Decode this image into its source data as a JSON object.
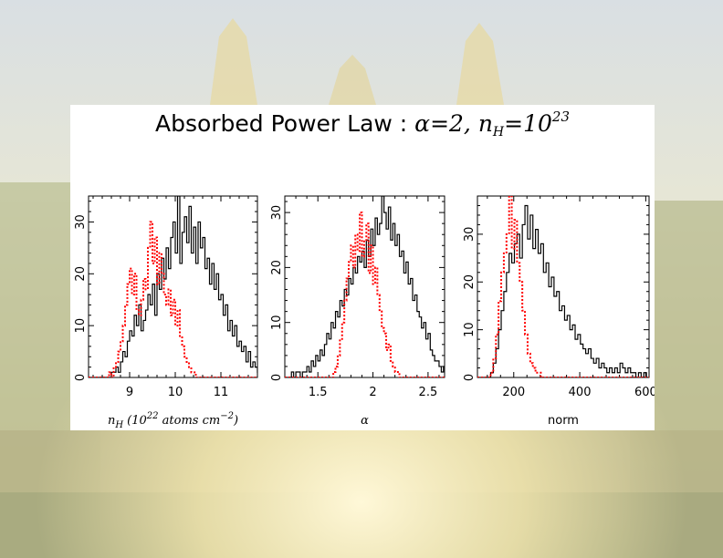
{
  "title": {
    "prefix": "Absorbed Power Law : ",
    "alpha_sym": "α",
    "alpha_eq": "=2, ",
    "nh_sym": "n",
    "nh_sub": "H",
    "nh_eq": "=10",
    "nh_exp": "23"
  },
  "colors": {
    "black_series": "#000000",
    "red_series": "#ff0000",
    "background_scene": "#e9e4cf"
  },
  "chart_data": [
    {
      "type": "histogram",
      "xlabel": "n_H (10^22 atoms cm^-2)",
      "xlabel_parts": {
        "sym": "n",
        "sub": "H",
        "open": " (10",
        "sup1": "22",
        "mid": " atoms cm",
        "sup2": "−2",
        "close": ")"
      },
      "xlim": [
        8.1,
        11.8
      ],
      "ylim": [
        0,
        35
      ],
      "xticks": [
        9,
        10,
        11
      ],
      "yticks": [
        0,
        10,
        20,
        30
      ],
      "series": [
        {
          "style": "solid-black",
          "bin_start": 8.1,
          "bin_width": 0.05,
          "values": [
            0,
            0,
            0,
            0,
            0,
            0,
            0,
            0,
            0,
            0,
            1,
            1,
            2,
            1,
            3,
            5,
            4,
            7,
            9,
            8,
            12,
            10,
            14,
            9,
            11,
            13,
            16,
            14,
            18,
            12,
            20,
            17,
            23,
            19,
            25,
            21,
            27,
            30,
            24,
            35,
            22,
            28,
            31,
            26,
            33,
            24,
            29,
            22,
            30,
            25,
            27,
            21,
            23,
            18,
            22,
            17,
            20,
            15,
            16,
            12,
            14,
            9,
            11,
            8,
            10,
            6,
            7,
            5,
            6,
            3,
            5,
            2,
            3,
            2,
            1,
            1,
            2,
            1
          ]
        },
        {
          "style": "dotted-red",
          "bin_start": 8.1,
          "bin_width": 0.05,
          "values": [
            0,
            0,
            0,
            0,
            0,
            0,
            0,
            0,
            0,
            1,
            0,
            2,
            3,
            5,
            7,
            10,
            14,
            18,
            21,
            16,
            20,
            13,
            12,
            15,
            19,
            17,
            25,
            30,
            22,
            27,
            18,
            24,
            20,
            16,
            14,
            17,
            12,
            15,
            10,
            13,
            8,
            6,
            4,
            3,
            2,
            1,
            1,
            0,
            0,
            0,
            0,
            0,
            0,
            0,
            0,
            0,
            0,
            0,
            0,
            0,
            0,
            0,
            0,
            0,
            0,
            0,
            0,
            0,
            0,
            0,
            0,
            0,
            0,
            0
          ]
        }
      ]
    },
    {
      "type": "histogram",
      "xlabel": "α",
      "xlim": [
        1.2,
        2.65
      ],
      "ylim": [
        0,
        33
      ],
      "xticks": [
        1.5,
        2,
        2.5
      ],
      "xtick_labels": [
        "1.5",
        "2",
        "2.5"
      ],
      "yticks": [
        0,
        10,
        20,
        30
      ],
      "series": [
        {
          "style": "solid-black",
          "bin_start": 1.2,
          "bin_width": 0.02,
          "values": [
            0,
            0,
            0,
            1,
            0,
            1,
            1,
            0,
            1,
            1,
            2,
            1,
            3,
            2,
            4,
            3,
            5,
            4,
            6,
            8,
            7,
            10,
            9,
            12,
            11,
            14,
            13,
            16,
            15,
            18,
            17,
            20,
            19,
            22,
            21,
            23,
            20,
            25,
            22,
            27,
            24,
            29,
            26,
            28,
            33,
            30,
            27,
            31,
            25,
            28,
            24,
            26,
            22,
            23,
            19,
            21,
            17,
            18,
            14,
            15,
            12,
            11,
            9,
            10,
            7,
            8,
            5,
            4,
            3,
            3,
            2,
            1,
            2
          ]
        },
        {
          "style": "dotted-red",
          "bin_start": 1.2,
          "bin_width": 0.02,
          "values": [
            0,
            0,
            0,
            0,
            0,
            0,
            0,
            0,
            0,
            0,
            0,
            0,
            0,
            0,
            0,
            0,
            0,
            0,
            0,
            0,
            0,
            0,
            1,
            2,
            4,
            7,
            10,
            14,
            18,
            21,
            24,
            20,
            26,
            23,
            30,
            22,
            25,
            28,
            19,
            24,
            17,
            20,
            15,
            12,
            9,
            8,
            5,
            6,
            3,
            2,
            1,
            1,
            0,
            0,
            0,
            0,
            0,
            0,
            0,
            0,
            0,
            0,
            0,
            0,
            0,
            0,
            0,
            0,
            0,
            0,
            0,
            0,
            0
          ]
        }
      ]
    },
    {
      "type": "histogram",
      "xlabel": "norm",
      "xlim": [
        90,
        610
      ],
      "ylim": [
        0,
        38
      ],
      "xticks": [
        200,
        400,
        600
      ],
      "yticks": [
        0,
        10,
        20,
        30
      ],
      "series": [
        {
          "style": "solid-black",
          "bin_start": 90,
          "bin_width": 8,
          "values": [
            0,
            0,
            0,
            0,
            0,
            1,
            3,
            6,
            10,
            14,
            18,
            22,
            26,
            24,
            28,
            30,
            25,
            32,
            36,
            29,
            34,
            27,
            31,
            26,
            28,
            22,
            24,
            19,
            21,
            17,
            18,
            14,
            15,
            12,
            13,
            10,
            11,
            8,
            9,
            7,
            6,
            5,
            6,
            4,
            3,
            4,
            2,
            3,
            2,
            1,
            2,
            1,
            2,
            1,
            3,
            2,
            1,
            2,
            1,
            1,
            0,
            1,
            0,
            1,
            0
          ]
        },
        {
          "style": "dotted-red",
          "bin_start": 90,
          "bin_width": 8,
          "values": [
            0,
            0,
            0,
            0,
            0,
            1,
            4,
            9,
            16,
            22,
            26,
            30,
            38,
            27,
            33,
            24,
            20,
            14,
            9,
            5,
            3,
            2,
            1,
            1,
            0,
            0,
            0,
            0,
            0,
            0,
            0,
            0,
            0,
            0,
            0,
            0,
            0,
            0,
            0,
            0,
            0,
            0,
            0,
            0,
            0,
            0,
            0,
            0,
            0,
            0,
            0,
            0,
            0,
            0,
            0,
            0,
            0,
            0,
            0,
            0,
            0,
            0,
            0,
            0,
            0
          ]
        }
      ]
    }
  ]
}
